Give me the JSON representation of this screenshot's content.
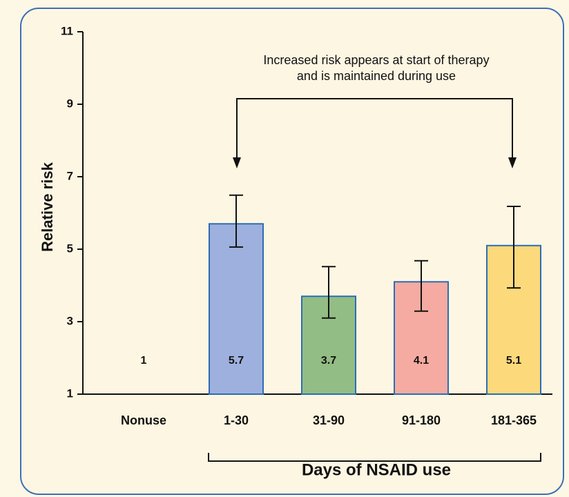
{
  "chart_data": {
    "type": "bar",
    "x_label": "Days of NSAID use",
    "y_label": "Relative risk",
    "annotation": [
      "Increased risk appears at start of therapy",
      "and is maintained during use"
    ],
    "categories": [
      "Nonuse",
      "1-30",
      "31-90",
      "91-180",
      "181-365"
    ],
    "values": [
      1,
      5.7,
      3.7,
      4.1,
      5.1
    ],
    "ci_low": [
      null,
      5.06,
      3.1,
      3.29,
      3.93
    ],
    "ci_high": [
      null,
      6.49,
      4.52,
      4.68,
      6.18
    ],
    "colors": [
      "#eda27e",
      "#9eb0dd",
      "#92bd84",
      "#f5aba1",
      "#fcd97b"
    ],
    "ylim": [
      1,
      11
    ],
    "yticks": [
      1,
      3,
      5,
      7,
      9,
      11
    ]
  }
}
